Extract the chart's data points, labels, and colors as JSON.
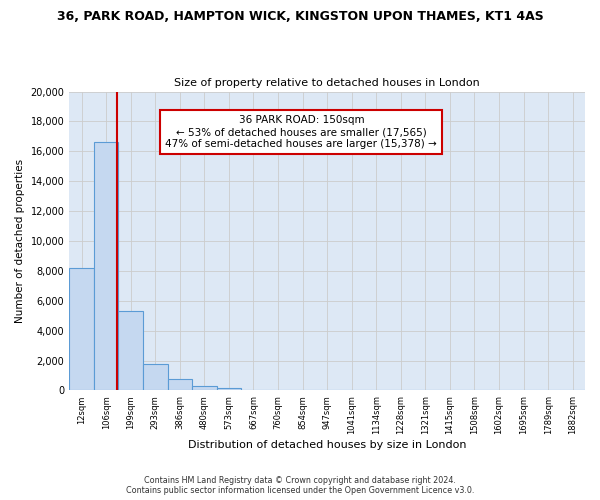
{
  "title": "36, PARK ROAD, HAMPTON WICK, KINGSTON UPON THAMES, KT1 4AS",
  "subtitle": "Size of property relative to detached houses in London",
  "xlabel": "Distribution of detached houses by size in London",
  "ylabel": "Number of detached properties",
  "footer_line1": "Contains HM Land Registry data © Crown copyright and database right 2024.",
  "footer_line2": "Contains public sector information licensed under the Open Government Licence v3.0.",
  "categories": [
    "12sqm",
    "106sqm",
    "199sqm",
    "293sqm",
    "386sqm",
    "480sqm",
    "573sqm",
    "667sqm",
    "760sqm",
    "854sqm",
    "947sqm",
    "1041sqm",
    "1134sqm",
    "1228sqm",
    "1321sqm",
    "1415sqm",
    "1508sqm",
    "1602sqm",
    "1695sqm",
    "1789sqm",
    "1882sqm"
  ],
  "values": [
    8200,
    16600,
    5300,
    1800,
    750,
    300,
    150,
    0,
    0,
    0,
    0,
    0,
    0,
    0,
    0,
    0,
    0,
    0,
    0,
    0,
    0
  ],
  "bar_color": "#c5d8f0",
  "bar_edge_color": "#5b9bd5",
  "property_line_x": 1.44,
  "property_line_color": "#cc0000",
  "annotation_text": "36 PARK ROAD: 150sqm\n← 53% of detached houses are smaller (17,565)\n47% of semi-detached houses are larger (15,378) →",
  "annotation_box_color": "#ffffff",
  "annotation_box_edge_color": "#cc0000",
  "ylim": [
    0,
    20000
  ],
  "yticks": [
    0,
    2000,
    4000,
    6000,
    8000,
    10000,
    12000,
    14000,
    16000,
    18000,
    20000
  ],
  "background_color": "#ffffff",
  "grid_color": "#cccccc",
  "ax_bg_color": "#dde8f5"
}
